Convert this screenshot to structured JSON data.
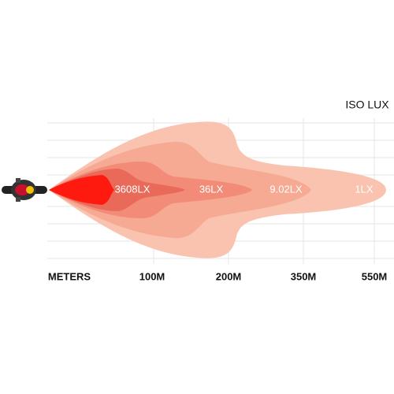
{
  "legend_title": "ISO LUX",
  "zones": [
    {
      "label": "3608LX"
    },
    {
      "label": "36LX"
    },
    {
      "label": "9.02LX"
    },
    {
      "label": "1LX"
    }
  ],
  "axis": {
    "label": "METERS",
    "distances": [
      "100M",
      "200M",
      "350M",
      "550M"
    ]
  }
}
